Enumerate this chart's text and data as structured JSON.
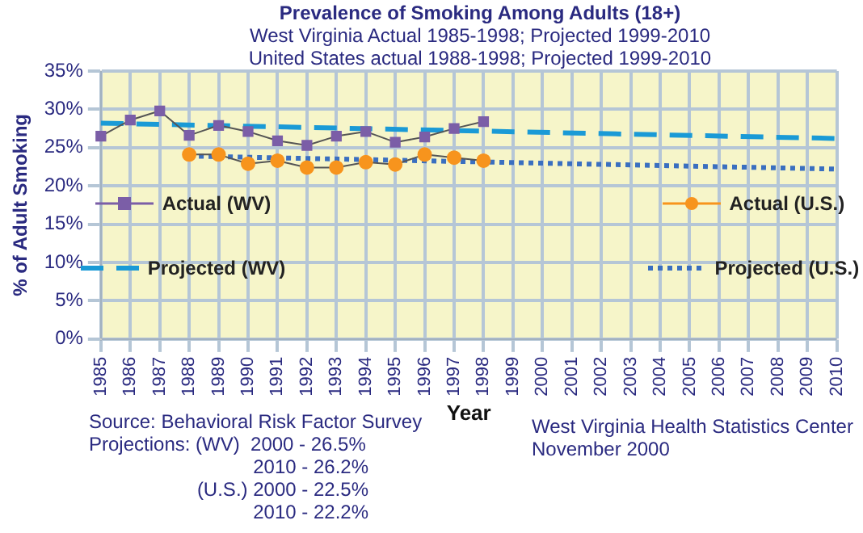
{
  "chart_data": {
    "type": "line",
    "title": "Prevalence of Smoking Among Adults (18+)",
    "subtitle": "West Virginia Actual 1985-1998; Projected 1999-2010\nUnited States actual 1988-1998; Projected 1999-2010",
    "xlabel": "Year",
    "ylabel": "% of Adult Smoking",
    "categories": [
      "1985",
      "1986",
      "1987",
      "1988",
      "1989",
      "1990",
      "1991",
      "1992",
      "1993",
      "1994",
      "1995",
      "1996",
      "1997",
      "1998",
      "1999",
      "2000",
      "2001",
      "2002",
      "2003",
      "2004",
      "2005",
      "2006",
      "2007",
      "2008",
      "2009",
      "2010"
    ],
    "series": [
      {
        "name": "Actual (WV)",
        "color": "#7b5ea7",
        "marker": "square",
        "line_style": "solid",
        "values": [
          26.5,
          28.6,
          29.8,
          26.6,
          27.9,
          27.1,
          25.9,
          25.3,
          26.5,
          27.1,
          25.7,
          26.4,
          27.5,
          28.4,
          null,
          null,
          null,
          null,
          null,
          null,
          null,
          null,
          null,
          null,
          null,
          null
        ]
      },
      {
        "name": "Projected (WV)",
        "color": "#1a9ad6",
        "marker": "none",
        "line_style": "dashed",
        "values": [
          28.2,
          null,
          null,
          null,
          null,
          null,
          null,
          null,
          null,
          null,
          null,
          null,
          null,
          null,
          null,
          null,
          null,
          null,
          null,
          null,
          null,
          null,
          null,
          null,
          null,
          26.2
        ]
      },
      {
        "name": "Actual (U.S.)",
        "color": "#f7941d",
        "marker": "circle",
        "line_style": "solid",
        "values": [
          null,
          null,
          null,
          24.1,
          24.1,
          22.9,
          23.3,
          22.4,
          22.4,
          23.1,
          22.8,
          24.1,
          23.7,
          23.3,
          null,
          null,
          null,
          null,
          null,
          null,
          null,
          null,
          null,
          null,
          null,
          null
        ]
      },
      {
        "name": "Projected (U.S.)",
        "color": "#3a6fc0",
        "marker": "none",
        "line_style": "dotted",
        "values": [
          null,
          null,
          null,
          23.9,
          null,
          null,
          null,
          null,
          null,
          null,
          null,
          null,
          null,
          null,
          null,
          null,
          null,
          null,
          null,
          null,
          null,
          null,
          null,
          null,
          null,
          22.2
        ]
      }
    ],
    "ylim": [
      0,
      35
    ],
    "yticks": [
      {
        "value": 0,
        "label": "0%"
      },
      {
        "value": 5,
        "label": "5%"
      },
      {
        "value": 10,
        "label": "10%"
      },
      {
        "value": 15,
        "label": "15%"
      },
      {
        "value": 20,
        "label": "20%"
      },
      {
        "value": 25,
        "label": "25%"
      },
      {
        "value": 30,
        "label": "30%"
      },
      {
        "value": 35,
        "label": "35%"
      }
    ],
    "grid": true,
    "legend": "bottom",
    "annotations": [
      "Source: Behavioral Risk Factor Survey",
      "Projections: (WV)  2000 - 26.5%",
      "2010 - 26.2%",
      "(U.S.) 2000 - 22.5%",
      "2010 - 22.2%",
      "West Virginia Health Statistics Center",
      "November 2000"
    ]
  }
}
